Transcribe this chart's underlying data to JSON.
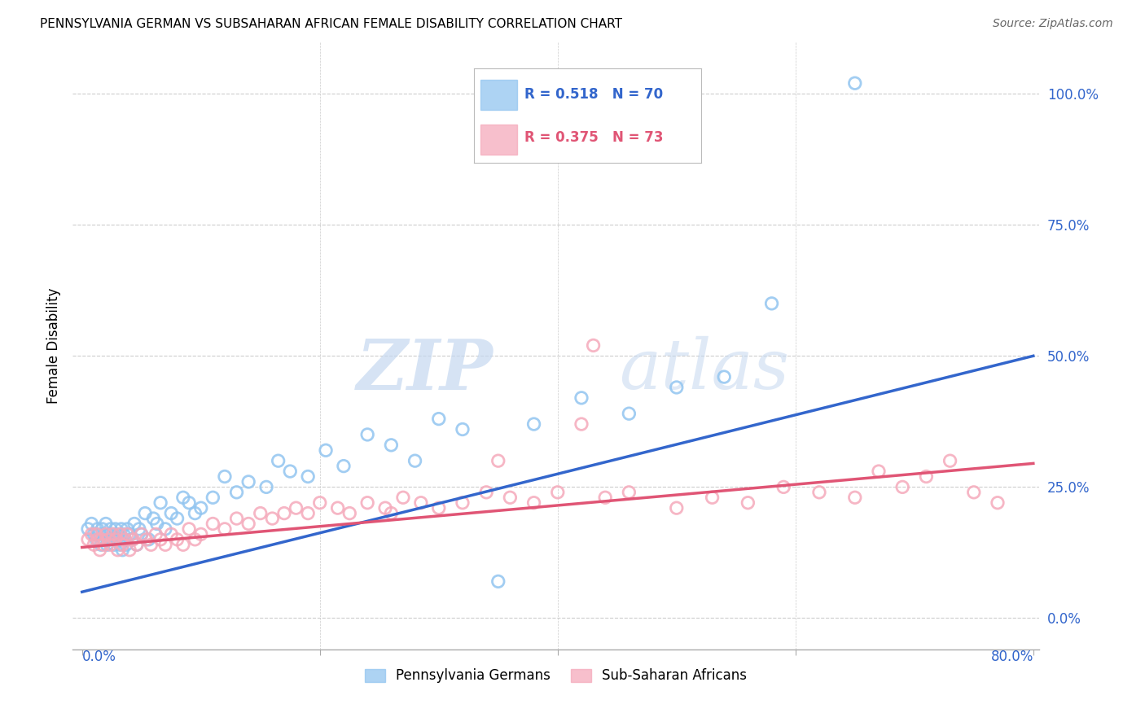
{
  "title": "PENNSYLVANIA GERMAN VS SUBSAHARAN AFRICAN FEMALE DISABILITY CORRELATION CHART",
  "source": "Source: ZipAtlas.com",
  "ylabel": "Female Disability",
  "ytick_values": [
    0.0,
    0.25,
    0.5,
    0.75,
    1.0
  ],
  "xmin": 0.0,
  "xmax": 0.8,
  "ymin": -0.06,
  "ymax": 1.1,
  "blue_R": "0.518",
  "blue_N": "70",
  "pink_R": "0.375",
  "pink_N": "73",
  "legend_label_blue": "Pennsylvania Germans",
  "legend_label_pink": "Sub-Saharan Africans",
  "blue_color": "#92C5F0",
  "pink_color": "#F5AABB",
  "blue_line_color": "#3366CC",
  "pink_line_color": "#E05575",
  "watermark_zip": "ZIP",
  "watermark_atlas": "atlas",
  "blue_line_x0": 0.0,
  "blue_line_y0": 0.05,
  "blue_line_x1": 0.8,
  "blue_line_y1": 0.5,
  "pink_line_x0": 0.0,
  "pink_line_y0": 0.135,
  "pink_line_x1": 0.8,
  "pink_line_y1": 0.295,
  "blue_scatter_x": [
    0.005,
    0.008,
    0.01,
    0.012,
    0.013,
    0.015,
    0.016,
    0.017,
    0.018,
    0.019,
    0.02,
    0.021,
    0.022,
    0.023,
    0.024,
    0.025,
    0.026,
    0.027,
    0.028,
    0.029,
    0.03,
    0.031,
    0.032,
    0.033,
    0.034,
    0.035,
    0.036,
    0.037,
    0.038,
    0.04,
    0.042,
    0.044,
    0.046,
    0.048,
    0.05,
    0.053,
    0.056,
    0.06,
    0.063,
    0.066,
    0.07,
    0.075,
    0.08,
    0.085,
    0.09,
    0.095,
    0.1,
    0.11,
    0.12,
    0.13,
    0.14,
    0.155,
    0.165,
    0.175,
    0.19,
    0.205,
    0.22,
    0.24,
    0.26,
    0.28,
    0.3,
    0.32,
    0.35,
    0.38,
    0.42,
    0.46,
    0.5,
    0.54,
    0.58,
    0.65
  ],
  "blue_scatter_y": [
    0.17,
    0.18,
    0.16,
    0.15,
    0.17,
    0.16,
    0.14,
    0.17,
    0.15,
    0.16,
    0.18,
    0.14,
    0.16,
    0.15,
    0.17,
    0.15,
    0.16,
    0.14,
    0.17,
    0.15,
    0.16,
    0.15,
    0.14,
    0.17,
    0.13,
    0.16,
    0.15,
    0.14,
    0.17,
    0.16,
    0.15,
    0.18,
    0.14,
    0.17,
    0.16,
    0.2,
    0.15,
    0.19,
    0.18,
    0.22,
    0.17,
    0.2,
    0.19,
    0.23,
    0.22,
    0.2,
    0.21,
    0.23,
    0.27,
    0.24,
    0.26,
    0.25,
    0.3,
    0.28,
    0.27,
    0.32,
    0.29,
    0.35,
    0.33,
    0.3,
    0.38,
    0.36,
    0.07,
    0.37,
    0.42,
    0.39,
    0.44,
    0.46,
    0.6,
    1.02
  ],
  "pink_scatter_x": [
    0.005,
    0.008,
    0.01,
    0.012,
    0.013,
    0.015,
    0.016,
    0.018,
    0.02,
    0.022,
    0.024,
    0.026,
    0.028,
    0.03,
    0.032,
    0.034,
    0.036,
    0.038,
    0.04,
    0.043,
    0.046,
    0.05,
    0.054,
    0.058,
    0.062,
    0.066,
    0.07,
    0.075,
    0.08,
    0.085,
    0.09,
    0.095,
    0.1,
    0.11,
    0.12,
    0.13,
    0.14,
    0.15,
    0.16,
    0.17,
    0.18,
    0.19,
    0.2,
    0.215,
    0.225,
    0.24,
    0.255,
    0.27,
    0.285,
    0.3,
    0.32,
    0.34,
    0.36,
    0.38,
    0.4,
    0.42,
    0.44,
    0.46,
    0.5,
    0.53,
    0.56,
    0.59,
    0.62,
    0.65,
    0.67,
    0.69,
    0.71,
    0.73,
    0.75,
    0.77,
    0.35,
    0.26,
    0.43
  ],
  "pink_scatter_y": [
    0.15,
    0.16,
    0.14,
    0.16,
    0.15,
    0.13,
    0.15,
    0.14,
    0.16,
    0.15,
    0.14,
    0.16,
    0.15,
    0.13,
    0.16,
    0.14,
    0.15,
    0.16,
    0.13,
    0.15,
    0.14,
    0.16,
    0.15,
    0.14,
    0.16,
    0.15,
    0.14,
    0.16,
    0.15,
    0.14,
    0.17,
    0.15,
    0.16,
    0.18,
    0.17,
    0.19,
    0.18,
    0.2,
    0.19,
    0.2,
    0.21,
    0.2,
    0.22,
    0.21,
    0.2,
    0.22,
    0.21,
    0.23,
    0.22,
    0.21,
    0.22,
    0.24,
    0.23,
    0.22,
    0.24,
    0.37,
    0.23,
    0.24,
    0.21,
    0.23,
    0.22,
    0.25,
    0.24,
    0.23,
    0.28,
    0.25,
    0.27,
    0.3,
    0.24,
    0.22,
    0.3,
    0.2,
    0.52
  ]
}
